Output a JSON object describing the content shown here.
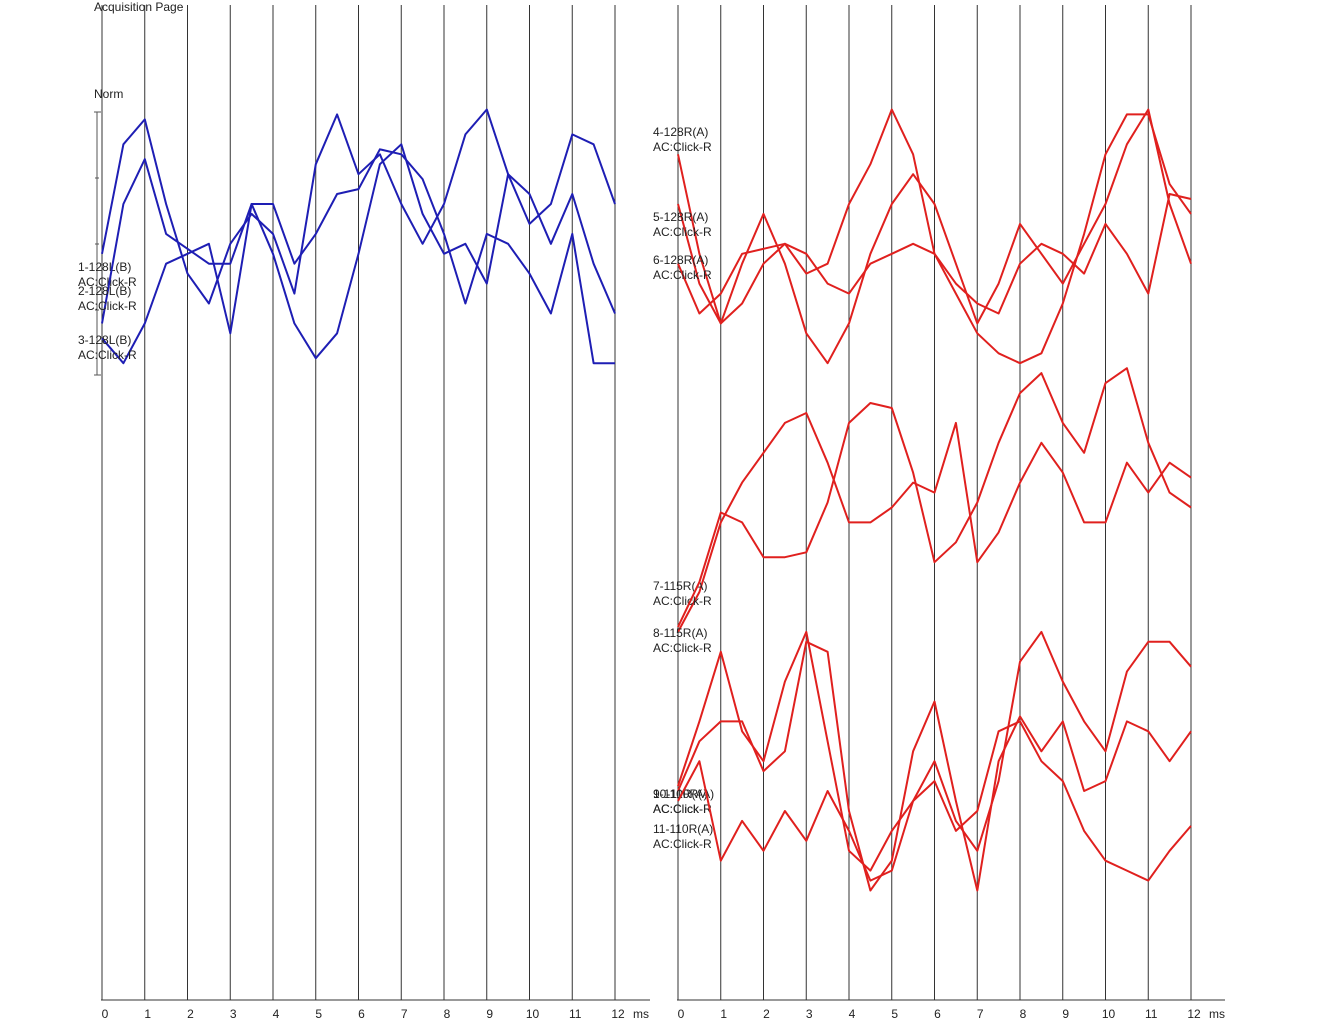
{
  "header": {
    "title": "Acquisition Page",
    "scale_label": "Norm"
  },
  "chart_data": [
    {
      "type": "line",
      "xlabel": "ms",
      "x": [
        0,
        0.5,
        1,
        1.5,
        2,
        2.5,
        3,
        3.5,
        4,
        4.5,
        5,
        5.5,
        6,
        6.5,
        7,
        7.5,
        8,
        8.5,
        9,
        9.5,
        10,
        10.5,
        11,
        11.5,
        12
      ],
      "xlim": [
        0,
        12
      ],
      "xticks": [
        0,
        1,
        2,
        3,
        4,
        5,
        6,
        7,
        8,
        9,
        10,
        11,
        12
      ],
      "ylim": [
        1000,
        0
      ],
      "grid": true,
      "series": [
        {
          "name": "1-128L(B)",
          "stimulus": "AC:Click-R",
          "color": "#1e1eb4",
          "values": [
            250,
            140,
            115,
            200,
            270,
            300,
            240,
            210,
            230,
            290,
            160,
            110,
            170,
            150,
            200,
            240,
            200,
            130,
            105,
            170,
            220,
            200,
            130,
            140,
            200
          ]
        },
        {
          "name": "2-128L(B)",
          "stimulus": "AC:Click-R",
          "color": "#1e1eb4",
          "values": [
            320,
            200,
            155,
            230,
            245,
            260,
            260,
            200,
            250,
            320,
            355,
            330,
            250,
            160,
            140,
            210,
            250,
            240,
            280,
            170,
            190,
            240,
            190,
            260,
            310
          ]
        },
        {
          "name": "3-128L(B)",
          "stimulus": "AC:Click-R",
          "color": "#1e1eb4",
          "values": [
            335,
            360,
            320,
            260,
            250,
            240,
            330,
            200,
            200,
            260,
            230,
            190,
            185,
            145,
            150,
            175,
            230,
            300,
            230,
            240,
            270,
            310,
            230,
            360,
            360
          ]
        }
      ]
    },
    {
      "type": "line",
      "xlabel": "ms",
      "x": [
        0,
        0.5,
        1,
        1.5,
        2,
        2.5,
        3,
        3.5,
        4,
        4.5,
        5,
        5.5,
        6,
        6.5,
        7,
        7.5,
        8,
        8.5,
        9,
        9.5,
        10,
        10.5,
        11,
        11.5,
        12
      ],
      "xlim": [
        0,
        12
      ],
      "xticks": [
        0,
        1,
        2,
        3,
        4,
        5,
        6,
        7,
        8,
        9,
        10,
        11,
        12
      ],
      "ylim": [
        1000,
        0
      ],
      "grid": true,
      "series": [
        {
          "name": "4-128R(A)",
          "stimulus": "AC:Click-R",
          "color": "#e0201e",
          "values": [
            150,
            250,
            320,
            300,
            260,
            240,
            270,
            260,
            200,
            160,
            105,
            150,
            250,
            290,
            330,
            350,
            360,
            350,
            300,
            230,
            150,
            110,
            110,
            180,
            210
          ]
        },
        {
          "name": "5-128R(A)",
          "stimulus": "AC:Click-R",
          "color": "#e0201e",
          "values": [
            200,
            280,
            320,
            260,
            210,
            260,
            330,
            360,
            320,
            250,
            200,
            170,
            200,
            260,
            320,
            280,
            220,
            250,
            280,
            240,
            200,
            140,
            105,
            200,
            260
          ]
        },
        {
          "name": "6-128R(A)",
          "stimulus": "AC:Click-R",
          "color": "#e0201e",
          "values": [
            260,
            310,
            290,
            250,
            245,
            240,
            250,
            280,
            290,
            260,
            250,
            240,
            250,
            280,
            300,
            310,
            260,
            240,
            250,
            270,
            220,
            250,
            290,
            190,
            195
          ]
        },
        {
          "name": "7-115R(A)",
          "stimulus": "AC:Click-R",
          "color": "#e0201e",
          "values": [
            630,
            590,
            520,
            480,
            450,
            420,
            410,
            460,
            520,
            520,
            505,
            480,
            490,
            420,
            560,
            530,
            480,
            440,
            470,
            520,
            520,
            460,
            490,
            460,
            475
          ]
        },
        {
          "name": "8-115R(A)",
          "stimulus": "AC:Click-R",
          "color": "#e0201e",
          "values": [
            625,
            580,
            510,
            520,
            555,
            555,
            550,
            500,
            420,
            400,
            405,
            470,
            560,
            540,
            500,
            440,
            390,
            370,
            420,
            450,
            380,
            365,
            440,
            490,
            505
          ]
        },
        {
          "name": "9-110R(A)",
          "stimulus": "AC:Click-R",
          "color": "#e0201e",
          "values": [
            785,
            720,
            650,
            730,
            760,
            680,
            630,
            740,
            850,
            870,
            830,
            800,
            760,
            820,
            850,
            780,
            660,
            630,
            680,
            720,
            750,
            670,
            640,
            640,
            665
          ]
        },
        {
          "name": "10-110R(A)",
          "stimulus": "AC:Click-R",
          "color": "#e0201e",
          "values": [
            790,
            740,
            720,
            720,
            770,
            750,
            640,
            650,
            810,
            890,
            860,
            750,
            700,
            800,
            890,
            760,
            715,
            750,
            720,
            790,
            780,
            720,
            730,
            760,
            730
          ]
        },
        {
          "name": "11-110R(A)",
          "stimulus": "AC:Click-R",
          "color": "#e0201e",
          "values": [
            800,
            760,
            860,
            820,
            850,
            810,
            840,
            790,
            830,
            880,
            870,
            800,
            780,
            830,
            810,
            730,
            720,
            760,
            780,
            830,
            860,
            870,
            880,
            850,
            825
          ]
        }
      ]
    }
  ]
}
